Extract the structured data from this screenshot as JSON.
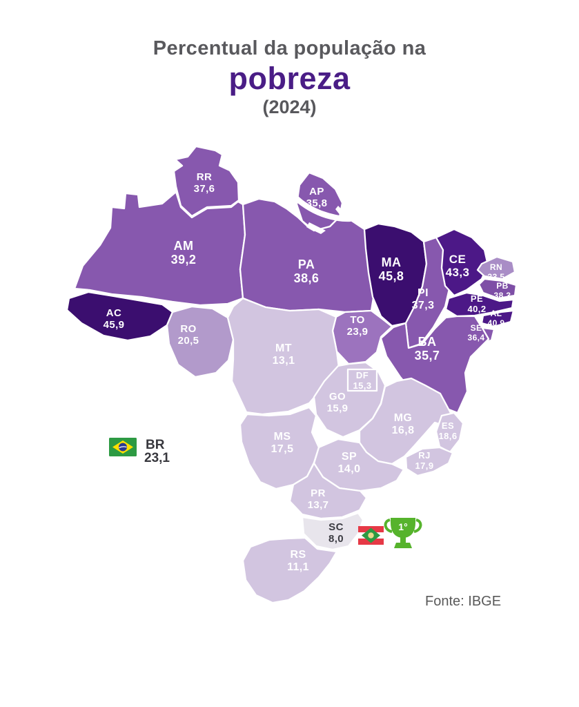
{
  "title": {
    "prefix": "Percentual da população na",
    "highlight": "pobreza",
    "year": "(2024)"
  },
  "source": "Fonte: IBGE",
  "national_legend": {
    "code": "BR",
    "value": "23,1"
  },
  "first_place": {
    "state": "SC",
    "rank": "1°"
  },
  "palette": {
    "darkest": "#3b0e6f",
    "dark": "#4c1887",
    "medium": "#8758ae",
    "medium_light": "#9c73be",
    "light_purple": "#b29acb",
    "light": "#d2c5e0",
    "lowest": "#e8e5ec",
    "title_accent": "#4a1d86",
    "label_on_dark": "#ffffff",
    "label_on_light_state": "#3b3b42"
  },
  "chart_data": {
    "type": "heatmap",
    "subtype": "choropleth-map",
    "region": "Brazil (states)",
    "title": "Percentual da população na pobreza (2024)",
    "unit": "%",
    "source": "Fonte: IBGE",
    "national": {
      "code": "BR",
      "value": 23.1,
      "display": "23,1"
    },
    "highlight": {
      "code": "SC",
      "rank": "1°"
    },
    "legend_position": "inline-labels",
    "states": [
      {
        "code": "AM",
        "display": "39,2",
        "value": 39.2,
        "color": "#8758ae"
      },
      {
        "code": "PA",
        "display": "38,6",
        "value": 38.6,
        "color": "#8758ae"
      },
      {
        "code": "RR",
        "display": "37,6",
        "value": 37.6,
        "color": "#8758ae"
      },
      {
        "code": "AP",
        "display": "35,8",
        "value": 35.8,
        "color": "#8758ae"
      },
      {
        "code": "MA",
        "display": "45,8",
        "value": 45.8,
        "color": "#3b0e6f"
      },
      {
        "code": "PI",
        "display": "37,3",
        "value": 37.3,
        "color": "#8758ae"
      },
      {
        "code": "CE",
        "display": "43,3",
        "value": 43.3,
        "color": "#4c1887"
      },
      {
        "code": "RN",
        "display": "33,5",
        "value": 33.5,
        "color": "#a98dc6"
      },
      {
        "code": "PB",
        "display": "38,3",
        "value": 38.3,
        "color": "#7e4fa6"
      },
      {
        "code": "PE",
        "display": "40,2",
        "value": 40.2,
        "color": "#4c1887"
      },
      {
        "code": "AL",
        "display": "40,9",
        "value": 40.9,
        "color": "#4c1887"
      },
      {
        "code": "SE",
        "display": "36,4",
        "value": 36.4,
        "color": "#8758ae"
      },
      {
        "code": "TO",
        "display": "23,9",
        "value": 23.9,
        "color": "#9c73be"
      },
      {
        "code": "BA",
        "display": "35,7",
        "value": 35.7,
        "color": "#8758ae"
      },
      {
        "code": "AC",
        "display": "45,9",
        "value": 45.9,
        "color": "#3b0e6f"
      },
      {
        "code": "RO",
        "display": "20,5",
        "value": 20.5,
        "color": "#b29acb"
      },
      {
        "code": "MT",
        "display": "13,1",
        "value": 13.1,
        "color": "#d2c5e0"
      },
      {
        "code": "GO",
        "display": "15,9",
        "value": 15.9,
        "color": "#d2c5e0"
      },
      {
        "code": "DF",
        "display": "15,3",
        "value": 15.3,
        "color": "#d2c5e0"
      },
      {
        "code": "MS",
        "display": "17,5",
        "value": 17.5,
        "color": "#d2c5e0"
      },
      {
        "code": "MG",
        "display": "16,8",
        "value": 16.8,
        "color": "#d2c5e0"
      },
      {
        "code": "ES",
        "display": "18,6",
        "value": 18.6,
        "color": "#d2c5e0"
      },
      {
        "code": "RJ",
        "display": "17,9",
        "value": 17.9,
        "color": "#d2c5e0"
      },
      {
        "code": "SP",
        "display": "14,0",
        "value": 14.0,
        "color": "#d2c5e0"
      },
      {
        "code": "PR",
        "display": "13,7",
        "value": 13.7,
        "color": "#d2c5e0"
      },
      {
        "code": "SC",
        "display": "8,0",
        "value": 8.0,
        "color": "#e8e5ec",
        "label_color": "#3b3b42"
      },
      {
        "code": "RS",
        "display": "11,1",
        "value": 11.1,
        "color": "#d2c5e0"
      }
    ]
  },
  "icons": {
    "brazil_flag": "brazil-flag-icon",
    "santa_catarina_flag": "santa-catarina-flag-icon",
    "trophy": "trophy-icon"
  }
}
